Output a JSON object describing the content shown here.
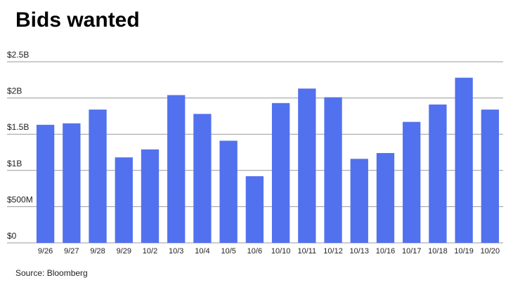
{
  "chart_data": {
    "type": "bar",
    "title": "Bids wanted",
    "source": "Source: Bloomberg",
    "categories": [
      "9/26",
      "9/27",
      "9/28",
      "9/29",
      "10/2",
      "10/3",
      "10/4",
      "10/5",
      "10/6",
      "10/10",
      "10/11",
      "10/12",
      "10/13",
      "10/16",
      "10/17",
      "10/18",
      "10/19",
      "10/20"
    ],
    "values": [
      1630000000,
      1650000000,
      1840000000,
      1180000000,
      1290000000,
      2040000000,
      1780000000,
      1410000000,
      920000000,
      1930000000,
      2130000000,
      2010000000,
      1160000000,
      1240000000,
      1670000000,
      1910000000,
      2280000000,
      1840000000
    ],
    "color": "#5271ee",
    "ylim": [
      0,
      2500000000
    ],
    "yticks": [
      {
        "value": 0,
        "label": "$0"
      },
      {
        "value": 500000000,
        "label": "$500M"
      },
      {
        "value": 1000000000,
        "label": "$1B"
      },
      {
        "value": 1500000000,
        "label": "$1.5B"
      },
      {
        "value": 2000000000,
        "label": "$2B"
      },
      {
        "value": 2500000000,
        "label": "$2.5B"
      }
    ],
    "grid": true
  }
}
